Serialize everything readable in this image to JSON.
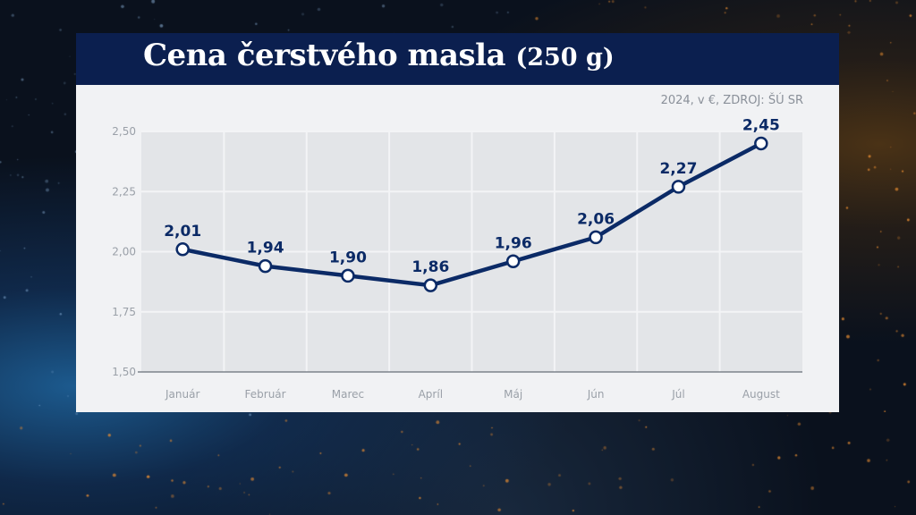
{
  "title": {
    "main": "Cena čerstvého masla",
    "sub": "(250 g)"
  },
  "source_note": "2024, v €, ZDROJ: ŠÚ SR",
  "colors": {
    "title_bar": "#0b1f4f",
    "line": "#0b2a66",
    "panel": "#f1f2f4",
    "plot_area": "#e3e5e8"
  },
  "chart_data": {
    "type": "line",
    "title": "Cena čerstvého masla (250 g)",
    "subtitle": "2024, v €, ZDROJ: ŠÚ SR",
    "xlabel": "",
    "ylabel": "",
    "categories": [
      "Január",
      "Február",
      "Marec",
      "Apríl",
      "Máj",
      "Jún",
      "Júl",
      "August"
    ],
    "series": [
      {
        "values": [
          2.01,
          1.94,
          1.9,
          1.86,
          1.96,
          2.06,
          2.27,
          2.45
        ],
        "labels": [
          "2,01",
          "1,94",
          "1,90",
          "1,86",
          "1,96",
          "2,06",
          "2,27",
          "2,45"
        ]
      }
    ],
    "ylim": [
      1.5,
      2.5
    ],
    "yticks": [
      1.5,
      1.75,
      2.0,
      2.25,
      2.5
    ],
    "ytick_labels": [
      "1,50",
      "1,75",
      "2,00",
      "2,25",
      "2,50"
    ],
    "grid": true,
    "legend": "none"
  }
}
